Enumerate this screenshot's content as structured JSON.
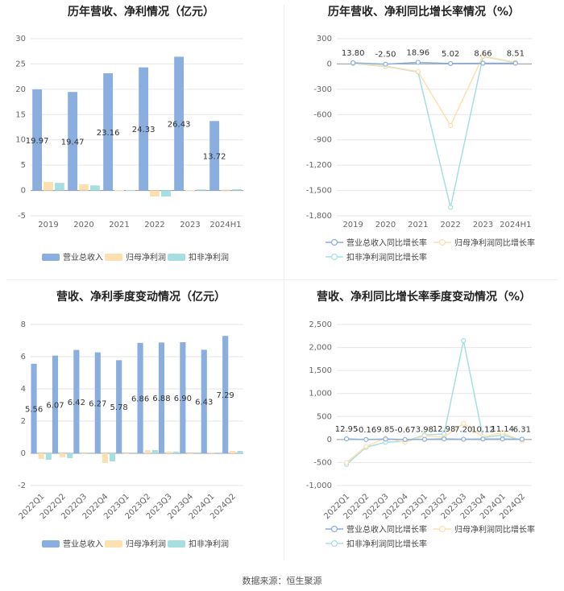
{
  "footer": {
    "source": "数据来源：恒生聚源"
  },
  "colors": {
    "revenue": "#8aaede",
    "net_profit": "#fde0b0",
    "deducted": "#a7dfe0",
    "axis": "#999999",
    "grid": "#e6e6e6"
  },
  "chart_data": [
    {
      "id": "annual_amount",
      "type": "bar",
      "title": "历年营收、净利情况（亿元）",
      "categories": [
        "2019",
        "2020",
        "2021",
        "2022",
        "2023",
        "2024H1"
      ],
      "ylim": [
        -5,
        30
      ],
      "yticks": [
        -5,
        0,
        5,
        10,
        15,
        20,
        25,
        30
      ],
      "series": [
        {
          "name": "营业总收入",
          "color": "#8aaede",
          "values": [
            19.97,
            19.47,
            23.16,
            24.33,
            26.43,
            13.72
          ],
          "labels": [
            "19.97",
            "19.47",
            "23.16",
            "24.33",
            "26.43",
            "13.72"
          ]
        },
        {
          "name": "归母净利润",
          "color": "#fde0b0",
          "values": [
            1.7,
            1.2,
            0.1,
            -1.2,
            0.1,
            0.15
          ],
          "labels": []
        },
        {
          "name": "扣非净利润",
          "color": "#a7dfe0",
          "values": [
            1.5,
            1.0,
            0.1,
            -1.2,
            0.2,
            0.25
          ],
          "labels": []
        }
      ],
      "legend": "bottom"
    },
    {
      "id": "annual_growth",
      "type": "line",
      "title": "历年营收、净利同比增长率情况（%）",
      "categories": [
        "2019",
        "2020",
        "2021",
        "2022",
        "2023",
        "2024H1"
      ],
      "ylim": [
        -1800,
        300
      ],
      "yticks": [
        -1800,
        -1500,
        -1200,
        -900,
        -600,
        -300,
        0,
        300
      ],
      "ytick_labels": [
        "-1,800",
        "-1,500",
        "-1,200",
        "-900",
        "-600",
        "-300",
        "0",
        "300"
      ],
      "series": [
        {
          "name": "营业总收入同比增长率",
          "color": "#8aaede",
          "values": [
            13.8,
            -2.5,
            18.96,
            5.02,
            8.66,
            8.51
          ],
          "labels": [
            "13.80",
            "-2.50",
            "18.96",
            "5.02",
            "8.66",
            "8.51"
          ]
        },
        {
          "name": "归母净利润同比增长率",
          "color": "#fde0b0",
          "values": [
            10,
            -25,
            -90,
            -730,
            95,
            20
          ],
          "labels": []
        },
        {
          "name": "扣非净利润同比增长率",
          "color": "#a7dfe0",
          "values": [
            5,
            -30,
            -95,
            -1700,
            90,
            15
          ],
          "labels": []
        }
      ],
      "legend": "bottom"
    },
    {
      "id": "quarterly_amount",
      "type": "bar",
      "title": "营收、净利季度变动情况（亿元）",
      "categories": [
        "2022Q1",
        "2022Q2",
        "2022Q3",
        "2022Q4",
        "2023Q1",
        "2023Q2",
        "2023Q3",
        "2023Q4",
        "2024Q1",
        "2024Q2"
      ],
      "ylim": [
        -2,
        8
      ],
      "yticks": [
        -2,
        0,
        2,
        4,
        6,
        8
      ],
      "series": [
        {
          "name": "营业总收入",
          "color": "#8aaede",
          "values": [
            5.56,
            6.07,
            6.42,
            6.27,
            5.78,
            6.86,
            6.88,
            6.9,
            6.43,
            7.29
          ],
          "labels": [
            "5.56",
            "6.07",
            "6.42",
            "6.27",
            "5.78",
            "6.86",
            "6.88",
            "6.90",
            "6.43",
            "7.29"
          ]
        },
        {
          "name": "归母净利润",
          "color": "#fde0b0",
          "values": [
            -0.35,
            -0.25,
            -0.05,
            -0.6,
            -0.05,
            0.2,
            0.1,
            -0.05,
            0.05,
            0.15
          ],
          "labels": []
        },
        {
          "name": "扣非净利润",
          "color": "#a7dfe0",
          "values": [
            -0.4,
            -0.3,
            -0.05,
            -0.5,
            -0.05,
            0.2,
            0.1,
            -0.05,
            0.05,
            0.15
          ],
          "labels": []
        }
      ],
      "legend": "bottom"
    },
    {
      "id": "quarterly_growth",
      "type": "line",
      "title": "营收、净利同比增长率季度变动情况（%）",
      "categories": [
        "2022Q1",
        "2022Q2",
        "2022Q3",
        "2022Q4",
        "2023Q1",
        "2023Q2",
        "2023Q3",
        "2023Q4",
        "2024Q1",
        "2024Q2"
      ],
      "ylim": [
        -1000,
        2500
      ],
      "yticks": [
        -1000,
        -500,
        0,
        500,
        1000,
        1500,
        2000,
        2500
      ],
      "ytick_labels": [
        "-1,000",
        "-500",
        "0",
        "500",
        "1,000",
        "1,500",
        "2,000",
        "2,500"
      ],
      "series": [
        {
          "name": "营业总收入同比增长率",
          "color": "#8aaede",
          "values": [
            12.95,
            -0.16,
            9.85,
            -0.67,
            3.98,
            12.98,
            7.2,
            10.12,
            11.14,
            6.31
          ],
          "labels": [
            "12.95",
            "-0.16",
            "9.85",
            "-0.67",
            "3.98",
            "12.98",
            "7.20",
            "10.12",
            "11.14",
            "6.31"
          ]
        },
        {
          "name": "归母净利润同比增长率",
          "color": "#fde0b0",
          "values": [
            -500,
            -150,
            30,
            -60,
            80,
            50,
            350,
            60,
            150,
            -30
          ],
          "labels": []
        },
        {
          "name": "扣非净利润同比增长率",
          "color": "#a7dfe0",
          "values": [
            -540,
            -170,
            -60,
            -40,
            100,
            120,
            2150,
            40,
            100,
            -20
          ],
          "labels": []
        }
      ],
      "legend": "bottom"
    }
  ]
}
